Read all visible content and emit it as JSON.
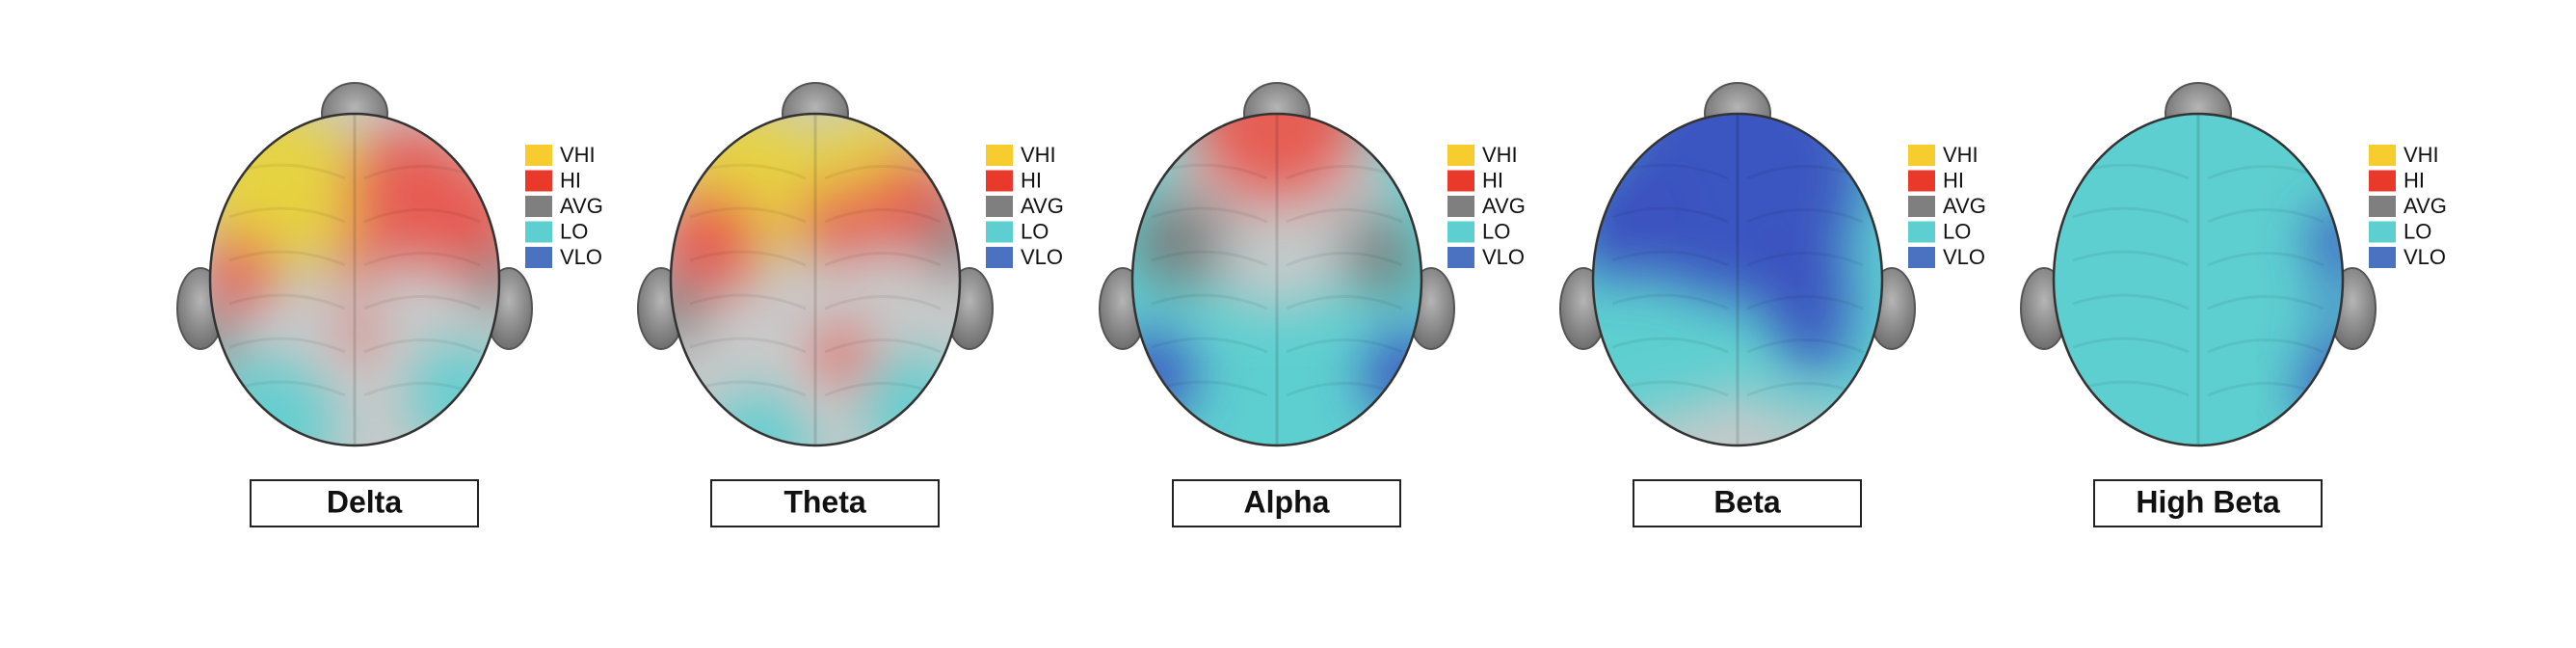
{
  "legend": [
    {
      "label": "VHI",
      "color": "#f7cc2e"
    },
    {
      "label": "HI",
      "color": "#e8392b"
    },
    {
      "label": "AVG",
      "color": "#7f7f7f"
    },
    {
      "label": "LO",
      "color": "#5ecfd0"
    },
    {
      "label": "VLO",
      "color": "#4a72c0"
    }
  ],
  "panels": [
    {
      "label": "Delta"
    },
    {
      "label": "Theta"
    },
    {
      "label": "Alpha"
    },
    {
      "label": "Beta"
    },
    {
      "label": "High Beta"
    }
  ]
}
